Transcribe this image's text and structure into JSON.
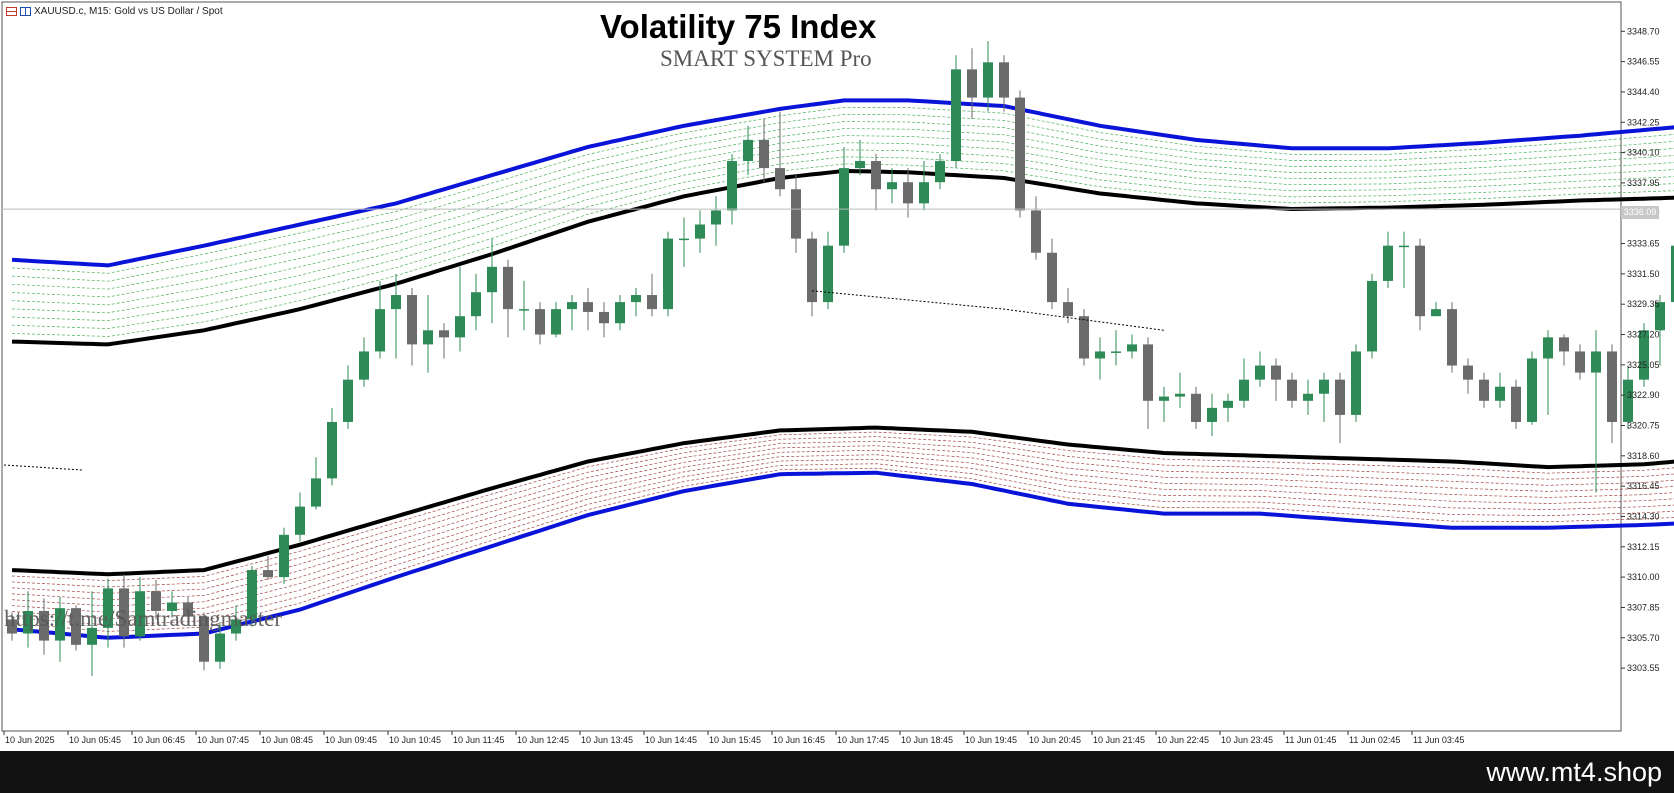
{
  "symbol": {
    "name": "XAUUSD.c, M15:",
    "description": "Gold vs US Dollar / Spot"
  },
  "title": "Volatility 75 Index",
  "subtitle": "SMART SYSTEM Pro",
  "watermark": "https://t.me/Samtradingmaster",
  "current_price": "3336.09",
  "footer_text": "www.mt4.shop",
  "colors": {
    "bull": "#2e8b57",
    "bear": "#6b6b6b",
    "band_outer": "#0a14d8",
    "band_inner": "#000000",
    "upper_fill": "#1f9d33",
    "lower_fill": "#8b1a1a",
    "axis": "#333333",
    "footer_bg": "#121212"
  },
  "chart_data": {
    "type": "candlestick",
    "ylim": [
      3301.5,
      3349.5
    ],
    "y_ticks": [
      "3348.70",
      "3346.55",
      "3344.40",
      "3342.25",
      "3340.10",
      "3337.95",
      "3335.80",
      "3333.65",
      "3331.50",
      "3329.35",
      "3327.20",
      "3325.05",
      "3322.90",
      "3320.75",
      "3318.60",
      "3316.45",
      "3314.30",
      "3312.15",
      "3310.00",
      "3307.85",
      "3305.70",
      "3303.55"
    ],
    "x_ticks": [
      "10 Jun 2025",
      "10 Jun 05:45",
      "10 Jun 06:45",
      "10 Jun 07:45",
      "10 Jun 08:45",
      "10 Jun 09:45",
      "10 Jun 10:45",
      "10 Jun 11:45",
      "10 Jun 12:45",
      "10 Jun 13:45",
      "10 Jun 14:45",
      "10 Jun 15:45",
      "10 Jun 16:45",
      "10 Jun 17:45",
      "10 Jun 18:45",
      "10 Jun 19:45",
      "10 Jun 20:45",
      "10 Jun 21:45",
      "10 Jun 22:45",
      "10 Jun 23:45",
      "11 Jun 01:45",
      "11 Jun 02:45",
      "11 Jun 03:45"
    ],
    "bar_count": 91,
    "candles": [
      [
        3307.0,
        3306.0,
        3307.5,
        3305.5
      ],
      [
        3306.0,
        3307.6,
        3309.0,
        3305.0
      ],
      [
        3307.6,
        3305.5,
        3308.5,
        3304.5
      ],
      [
        3305.5,
        3307.8,
        3308.6,
        3304.0
      ],
      [
        3307.8,
        3305.2,
        3308.0,
        3304.8
      ],
      [
        3305.2,
        3306.4,
        3309.0,
        3303.0
      ],
      [
        3306.4,
        3309.2,
        3309.9,
        3305.0
      ],
      [
        3309.2,
        3305.8,
        3310.2,
        3305.0
      ],
      [
        3305.8,
        3309.0,
        3310.0,
        3305.5
      ],
      [
        3309.0,
        3307.6,
        3309.8,
        3307.0
      ],
      [
        3307.6,
        3308.2,
        3309.0,
        3307.2
      ],
      [
        3308.2,
        3307.2,
        3308.6,
        3306.6
      ],
      [
        3307.2,
        3304.0,
        3307.5,
        3303.4
      ],
      [
        3304.0,
        3306.0,
        3306.8,
        3303.5
      ],
      [
        3306.0,
        3307.0,
        3308.0,
        3305.5
      ],
      [
        3307.0,
        3310.5,
        3310.8,
        3306.5
      ],
      [
        3310.5,
        3310.0,
        3311.5,
        3309.8
      ],
      [
        3310.0,
        3313.0,
        3313.5,
        3309.5
      ],
      [
        3313.0,
        3315.0,
        3316.0,
        3312.5
      ],
      [
        3315.0,
        3317.0,
        3318.5,
        3314.8
      ],
      [
        3317.0,
        3321.0,
        3322.0,
        3316.5
      ],
      [
        3321.0,
        3324.0,
        3325.0,
        3320.5
      ],
      [
        3324.0,
        3326.0,
        3327.0,
        3323.5
      ],
      [
        3326.0,
        3329.0,
        3331.0,
        3325.5
      ],
      [
        3329.0,
        3330.0,
        3331.5,
        3325.5
      ],
      [
        3330.0,
        3326.5,
        3330.5,
        3325.0
      ],
      [
        3326.5,
        3327.5,
        3330.0,
        3324.5
      ],
      [
        3327.5,
        3327.0,
        3328.0,
        3325.5
      ],
      [
        3327.0,
        3328.5,
        3332.0,
        3326.0
      ],
      [
        3328.5,
        3330.2,
        3331.5,
        3327.5
      ],
      [
        3330.2,
        3332.0,
        3334.0,
        3328.0
      ],
      [
        3332.0,
        3329.0,
        3332.5,
        3327.0
      ],
      [
        3329.0,
        3329.0,
        3331.0,
        3327.5
      ],
      [
        3329.0,
        3327.2,
        3329.5,
        3326.5
      ],
      [
        3327.2,
        3329.0,
        3329.5,
        3327.0
      ],
      [
        3329.0,
        3329.5,
        3330.0,
        3327.5
      ],
      [
        3329.5,
        3328.8,
        3330.5,
        3327.5
      ],
      [
        3328.8,
        3328.0,
        3329.5,
        3327.0
      ],
      [
        3328.0,
        3329.5,
        3330.0,
        3327.5
      ],
      [
        3329.5,
        3330.0,
        3330.5,
        3328.5
      ],
      [
        3330.0,
        3329.0,
        3331.5,
        3328.5
      ],
      [
        3329.0,
        3334.0,
        3334.5,
        3328.5
      ],
      [
        3334.0,
        3334.0,
        3335.5,
        3332.0
      ],
      [
        3334.0,
        3335.0,
        3336.0,
        3333.0
      ],
      [
        3335.0,
        3336.0,
        3337.0,
        3333.5
      ],
      [
        3336.0,
        3339.5,
        3340.0,
        3335.0
      ],
      [
        3339.5,
        3341.0,
        3342.0,
        3338.5
      ],
      [
        3341.0,
        3339.0,
        3342.5,
        3338.0
      ],
      [
        3339.0,
        3337.5,
        3343.0,
        3337.0
      ],
      [
        3337.5,
        3334.0,
        3338.5,
        3333.0
      ],
      [
        3334.0,
        3329.5,
        3334.5,
        3328.5
      ],
      [
        3329.5,
        3333.5,
        3334.5,
        3329.0
      ],
      [
        3333.5,
        3339.0,
        3340.5,
        3333.0
      ],
      [
        3339.0,
        3339.5,
        3341.0,
        3338.5
      ],
      [
        3339.5,
        3337.5,
        3340.0,
        3336.0
      ],
      [
        3337.5,
        3338.0,
        3339.0,
        3336.5
      ],
      [
        3338.0,
        3336.5,
        3339.0,
        3335.5
      ],
      [
        3336.5,
        3338.0,
        3339.5,
        3336.0
      ],
      [
        3338.0,
        3339.5,
        3340.0,
        3337.5
      ],
      [
        3339.5,
        3346.0,
        3347.0,
        3339.0
      ],
      [
        3346.0,
        3344.0,
        3347.5,
        3342.5
      ],
      [
        3344.0,
        3346.5,
        3348.0,
        3343.0
      ],
      [
        3346.5,
        3344.0,
        3347.0,
        3343.0
      ],
      [
        3344.0,
        3336.0,
        3344.5,
        3335.5
      ],
      [
        3336.0,
        3333.0,
        3337.0,
        3332.5
      ],
      [
        3333.0,
        3329.5,
        3334.0,
        3329.0
      ],
      [
        3329.5,
        3328.5,
        3330.5,
        3328.0
      ],
      [
        3328.5,
        3325.5,
        3329.0,
        3325.0
      ],
      [
        3325.5,
        3326.0,
        3327.0,
        3324.0
      ],
      [
        3326.0,
        3326.0,
        3327.5,
        3325.0
      ],
      [
        3326.0,
        3326.5,
        3327.2,
        3325.5
      ],
      [
        3326.5,
        3322.5,
        3327.0,
        3320.5
      ],
      [
        3322.5,
        3322.8,
        3323.5,
        3321.0
      ],
      [
        3322.8,
        3323.0,
        3324.5,
        3322.0
      ],
      [
        3323.0,
        3321.0,
        3323.5,
        3320.5
      ],
      [
        3321.0,
        3322.0,
        3323.0,
        3320.0
      ],
      [
        3322.0,
        3322.5,
        3323.0,
        3321.0
      ],
      [
        3322.5,
        3324.0,
        3325.5,
        3322.0
      ],
      [
        3324.0,
        3325.0,
        3326.0,
        3323.5
      ],
      [
        3325.0,
        3324.0,
        3325.5,
        3322.5
      ],
      [
        3324.0,
        3322.5,
        3324.5,
        3322.0
      ],
      [
        3322.5,
        3323.0,
        3324.0,
        3321.5
      ],
      [
        3323.0,
        3324.0,
        3324.5,
        3321.0
      ],
      [
        3324.0,
        3321.5,
        3324.5,
        3319.5
      ],
      [
        3321.5,
        3326.0,
        3326.5,
        3321.0
      ],
      [
        3326.0,
        3331.0,
        3331.5,
        3325.5
      ],
      [
        3331.0,
        3333.5,
        3334.5,
        3330.5
      ],
      [
        3333.5,
        3333.5,
        3334.5,
        3330.5
      ],
      [
        3333.5,
        3328.5,
        3334.0,
        3327.5
      ],
      [
        3328.5,
        3329.0,
        3329.5,
        3328.5
      ],
      [
        3329.0,
        3325.0,
        3329.5,
        3324.5
      ]
    ],
    "extra_candles": [
      [
        3325.0,
        3324.0,
        3325.5,
        3323.0
      ],
      [
        3324.0,
        3322.5,
        3324.5,
        3322.0
      ],
      [
        3322.5,
        3323.5,
        3324.5,
        3322.0
      ],
      [
        3323.5,
        3321.0,
        3324.0,
        3320.5
      ],
      [
        3321.0,
        3325.5,
        3326.0,
        3320.8
      ],
      [
        3325.5,
        3327.0,
        3327.5,
        3321.5
      ],
      [
        3327.0,
        3326.0,
        3327.2,
        3325.0
      ],
      [
        3326.0,
        3324.5,
        3326.5,
        3324.0
      ],
      [
        3324.5,
        3326.0,
        3327.5,
        3316.0
      ],
      [
        3326.0,
        3321.0,
        3326.5,
        3319.5
      ],
      [
        3321.0,
        3324.0,
        3325.0,
        3320.5
      ],
      [
        3324.0,
        3327.5,
        3328.0,
        3323.5
      ],
      [
        3327.5,
        3329.5,
        3330.0,
        3325.0
      ],
      [
        3329.5,
        3333.5,
        3334.0,
        3329.0
      ],
      [
        3333.5,
        3333.0,
        3335.5,
        3331.5
      ],
      [
        3333.0,
        3334.0,
        3335.0,
        3331.5
      ],
      [
        3334.0,
        3336.0,
        3337.0,
        3332.5
      ],
      [
        3336.0,
        3336.2,
        3337.5,
        3335.0
      ]
    ],
    "upper_band": [
      [
        0,
        3332.5
      ],
      [
        6,
        3332.1
      ],
      [
        12,
        3333.5
      ],
      [
        18,
        3335.0
      ],
      [
        24,
        3336.5
      ],
      [
        30,
        3338.5
      ],
      [
        36,
        3340.5
      ],
      [
        42,
        3342.0
      ],
      [
        48,
        3343.2
      ],
      [
        52,
        3343.8
      ],
      [
        56,
        3343.8
      ],
      [
        62,
        3343.4
      ],
      [
        68,
        3342.0
      ],
      [
        74,
        3341.0
      ],
      [
        80,
        3340.4
      ],
      [
        86,
        3340.4
      ],
      [
        92,
        3340.8
      ],
      [
        98,
        3341.3
      ],
      [
        104,
        3341.9
      ],
      [
        108,
        3342.3
      ]
    ],
    "upper_inner": [
      [
        0,
        3326.7
      ],
      [
        6,
        3326.5
      ],
      [
        12,
        3327.5
      ],
      [
        18,
        3329.0
      ],
      [
        24,
        3330.8
      ],
      [
        30,
        3332.9
      ],
      [
        36,
        3335.2
      ],
      [
        42,
        3337.0
      ],
      [
        48,
        3338.3
      ],
      [
        52,
        3338.8
      ],
      [
        56,
        3338.7
      ],
      [
        62,
        3338.3
      ],
      [
        68,
        3337.2
      ],
      [
        74,
        3336.5
      ],
      [
        80,
        3336.1
      ],
      [
        86,
        3336.2
      ],
      [
        92,
        3336.4
      ],
      [
        98,
        3336.7
      ],
      [
        104,
        3336.9
      ],
      [
        108,
        3337.1
      ]
    ],
    "lower_inner": [
      [
        0,
        3310.5
      ],
      [
        6,
        3310.2
      ],
      [
        12,
        3310.5
      ],
      [
        18,
        3312.3
      ],
      [
        24,
        3314.3
      ],
      [
        30,
        3316.3
      ],
      [
        36,
        3318.2
      ],
      [
        42,
        3319.5
      ],
      [
        48,
        3320.4
      ],
      [
        54,
        3320.6
      ],
      [
        60,
        3320.3
      ],
      [
        66,
        3319.4
      ],
      [
        72,
        3318.8
      ],
      [
        78,
        3318.6
      ],
      [
        84,
        3318.4
      ],
      [
        90,
        3318.2
      ],
      [
        96,
        3317.8
      ],
      [
        102,
        3318.0
      ],
      [
        108,
        3318.6
      ]
    ],
    "lower_band": [
      [
        0,
        3306.3
      ],
      [
        6,
        3305.7
      ],
      [
        12,
        3306.0
      ],
      [
        18,
        3307.7
      ],
      [
        24,
        3310.0
      ],
      [
        30,
        3312.2
      ],
      [
        36,
        3314.4
      ],
      [
        42,
        3316.1
      ],
      [
        48,
        3317.3
      ],
      [
        54,
        3317.4
      ],
      [
        60,
        3316.6
      ],
      [
        66,
        3315.2
      ],
      [
        72,
        3314.5
      ],
      [
        78,
        3314.5
      ],
      [
        84,
        3314.0
      ],
      [
        90,
        3313.5
      ],
      [
        96,
        3313.5
      ],
      [
        102,
        3313.7
      ],
      [
        108,
        3314.0
      ]
    ],
    "lines": [
      {
        "style": "dotted",
        "points": [
          [
            50,
            3330.3
          ],
          [
            62,
            3329.0
          ],
          [
            72,
            3327.5
          ]
        ]
      }
    ],
    "horizontal_line": 3336.09,
    "grid": false
  }
}
